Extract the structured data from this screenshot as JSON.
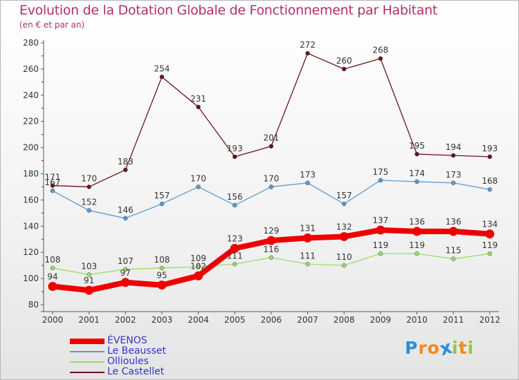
{
  "title": "Evolution de la Dotation Globale de Fonctionnement par Habitant",
  "subtitle": "(en € et par an)",
  "chart_data": {
    "type": "line",
    "title": "Evolution de la Dotation Globale de Fonctionnement par Habitant",
    "subtitle": "(en € et par an)",
    "xlabel": "",
    "ylabel": "",
    "ylim": [
      80,
      280
    ],
    "yticks": [
      80,
      100,
      120,
      140,
      160,
      180,
      200,
      220,
      240,
      260,
      280
    ],
    "x": [
      "2000",
      "2001",
      "2002",
      "2003",
      "2004",
      "2005",
      "2006",
      "2007",
      "2008",
      "2009",
      "2010",
      "2011",
      "2012"
    ],
    "grid": false,
    "legend_position": "bottom-left",
    "series": [
      {
        "name": "Le Castellet",
        "color": "#6b1218",
        "values": [
          171,
          170,
          183,
          254,
          231,
          193,
          201,
          272,
          260,
          268,
          195,
          194,
          193
        ]
      },
      {
        "name": "Le Beausset",
        "color": "#5b9ad0",
        "values": [
          167,
          152,
          146,
          157,
          170,
          156,
          170,
          173,
          157,
          175,
          174,
          173,
          168
        ]
      },
      {
        "name": "Ollioules",
        "color": "#99dd66",
        "values": [
          108,
          103,
          107,
          108,
          109,
          111,
          116,
          111,
          110,
          119,
          119,
          115,
          119
        ]
      },
      {
        "name": "ÉVENOS",
        "color": "#ee0000",
        "values": [
          94,
          91,
          97,
          95,
          102,
          123,
          129,
          131,
          132,
          137,
          136,
          136,
          134
        ]
      }
    ],
    "legend_order": [
      "ÉVENOS",
      "Le Beausset",
      "Ollioules",
      "Le Castellet"
    ]
  },
  "legend": {
    "items": [
      {
        "label": "ÉVENOS",
        "color": "#ee0000",
        "label_color": "#3333cc"
      },
      {
        "label": "Le Beausset",
        "color": "#5b9ad0",
        "label_color": "#3333cc"
      },
      {
        "label": "Ollioules",
        "color": "#99dd66",
        "label_color": "#3333cc"
      },
      {
        "label": "Le Castellet",
        "color": "#6b1218",
        "label_color": "#3333cc"
      }
    ]
  },
  "logo": {
    "letters": [
      {
        "ch": "P",
        "color": "#2a8fd8"
      },
      {
        "ch": "r",
        "color": "#f08a1e"
      },
      {
        "ch": "o",
        "color": "#f08a1e"
      },
      {
        "ch": "x",
        "color": "#2a8fd8"
      },
      {
        "ch": "i",
        "color": "#93c83e"
      },
      {
        "ch": "t",
        "color": "#f08a1e"
      },
      {
        "ch": "i",
        "color": "#93c83e"
      }
    ]
  }
}
